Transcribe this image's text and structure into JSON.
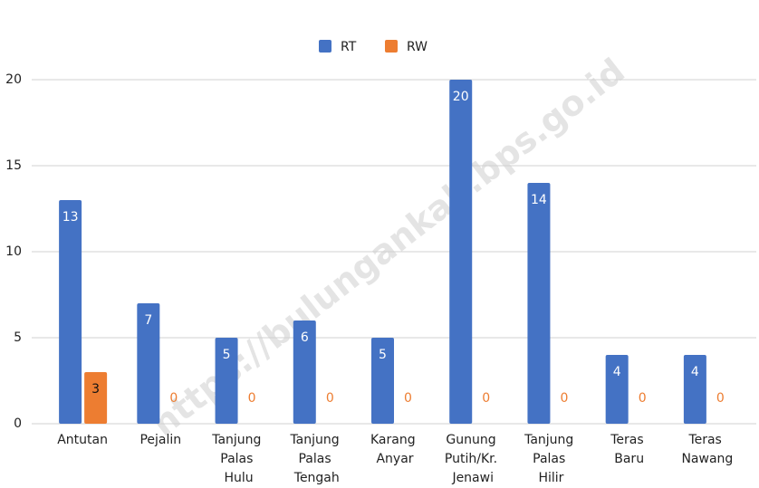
{
  "chart_data": {
    "type": "bar",
    "categories": [
      "Antutan",
      "Pejalin",
      "Tanjung Palas Hulu",
      "Tanjung Palas Tengah",
      "Karang Anyar",
      "Gunung Putih/Kr. Jenawi",
      "Tanjung Palas Hilir",
      "Teras Baru",
      "Teras Nawang"
    ],
    "series": [
      {
        "name": "RT",
        "color": "#4472c4",
        "values": [
          13,
          7,
          5,
          6,
          5,
          20,
          14,
          4,
          4
        ]
      },
      {
        "name": "RW",
        "color": "#ed7d31",
        "values": [
          3,
          0,
          0,
          0,
          0,
          0,
          0,
          0,
          0
        ]
      }
    ],
    "ylim": [
      0,
      20
    ],
    "yticks": [
      0,
      5,
      10,
      15,
      20
    ],
    "grid": true,
    "legend": "top",
    "watermark": "https://bulungankab.bps.go.id"
  }
}
